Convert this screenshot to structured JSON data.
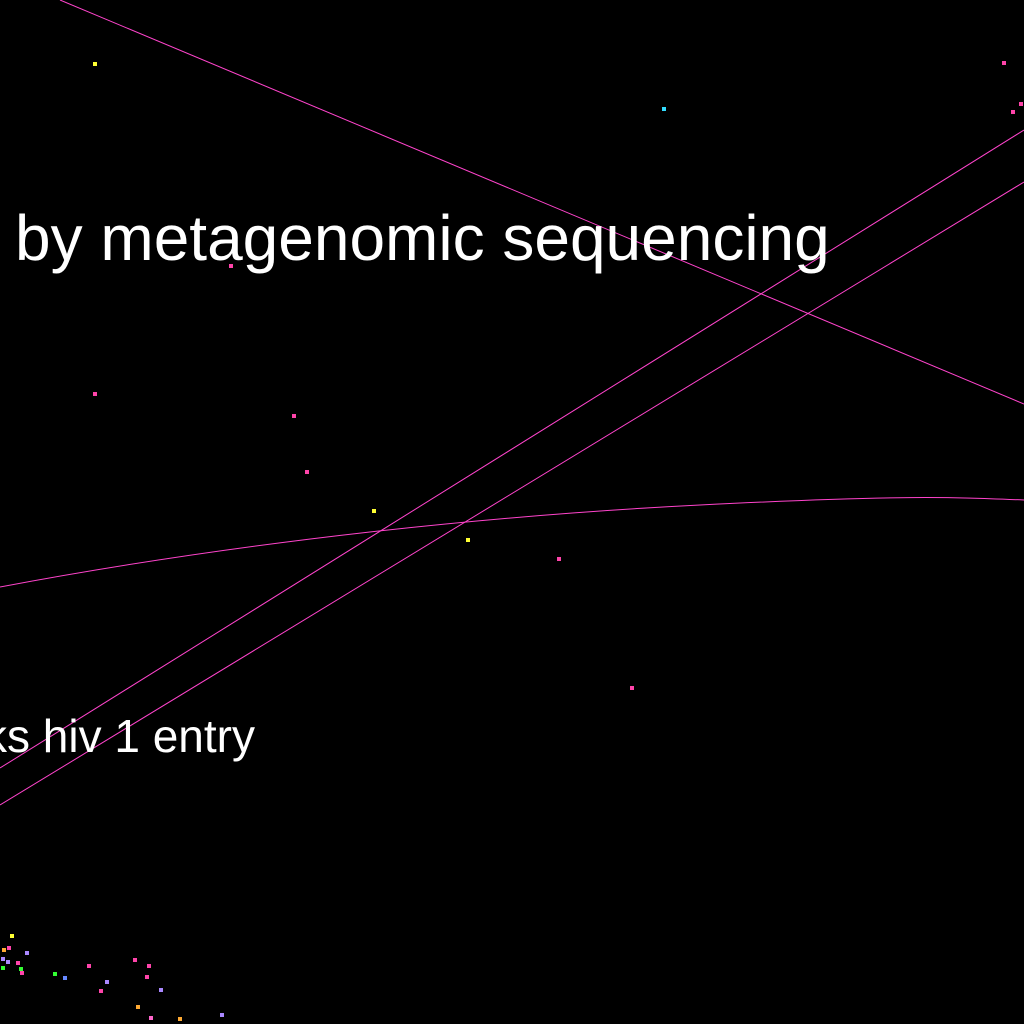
{
  "labels": {
    "topic_1": "by metagenomic sequencing",
    "topic_2": "ks hiv 1 entry"
  },
  "colors": {
    "background": "#000000",
    "text": "#ffffff",
    "edge": "#ff44cc",
    "node_palette": [
      "#ff44aa",
      "#ffff33",
      "#33ddff",
      "#ffaa33",
      "#aa88ff",
      "#33ff33",
      "#6688ff",
      "#ff66cc"
    ]
  }
}
